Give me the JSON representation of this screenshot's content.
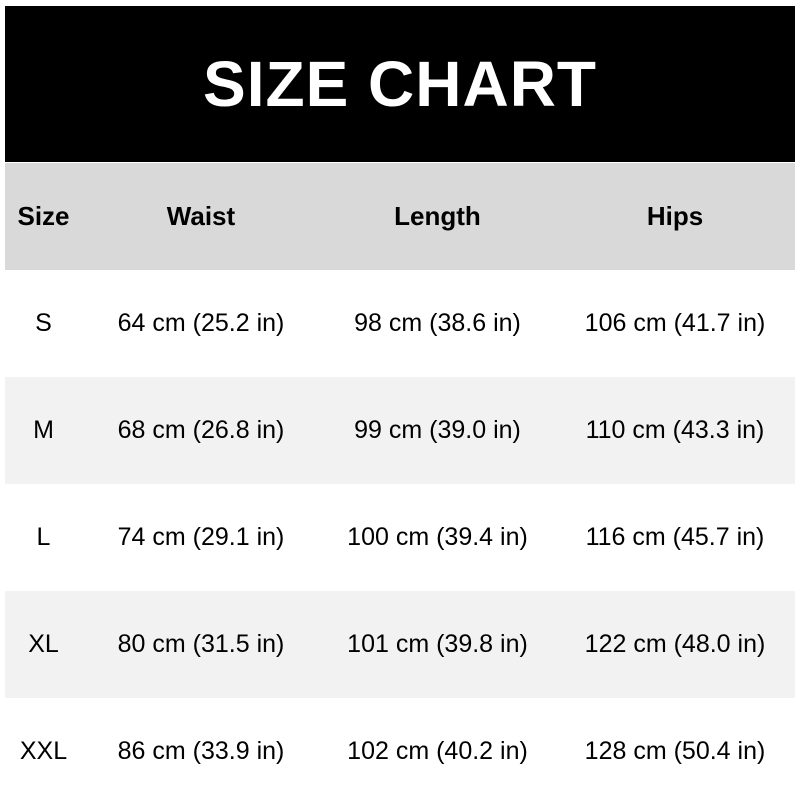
{
  "title": "SIZE CHART",
  "colors": {
    "title_bg": "#000000",
    "header_bg": "#d9d9d9",
    "alt_row_bg": "#f2f2f2"
  },
  "headers": [
    "Size",
    "Waist",
    "Length",
    "Hips"
  ],
  "rows": [
    [
      "S",
      "64 cm (25.2 in)",
      "98 cm (38.6 in)",
      "106 cm (41.7 in)"
    ],
    [
      "M",
      "68 cm (26.8 in)",
      "99 cm (39.0 in)",
      "110 cm (43.3 in)"
    ],
    [
      "L",
      "74 cm (29.1 in)",
      "100 cm (39.4 in)",
      "116 cm (45.7 in)"
    ],
    [
      "XL",
      "80 cm (31.5 in)",
      "101 cm (39.8 in)",
      "122 cm (48.0 in)"
    ],
    [
      "XXL",
      "86 cm (33.9 in)",
      "102 cm (40.2 in)",
      "128 cm (50.4 in)"
    ]
  ]
}
